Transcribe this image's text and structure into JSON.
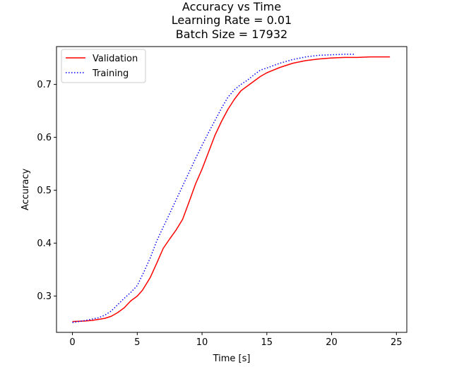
{
  "chart_data": {
    "type": "line",
    "title_lines": [
      "Accuracy vs Time",
      "Learning Rate = 0.01",
      "Batch Size = 17932"
    ],
    "xlabel": "Time [s]",
    "ylabel": "Accuracy",
    "xlim": [
      -1.23,
      25.8
    ],
    "ylim": [
      0.2315,
      0.7715
    ],
    "xticks": [
      0,
      5,
      10,
      15,
      20,
      25
    ],
    "yticks": [
      0.3,
      0.4,
      0.5,
      0.6,
      0.7
    ],
    "xtick_labels": [
      "0",
      "5",
      "10",
      "15",
      "20",
      "25"
    ],
    "ytick_labels": [
      "0.3",
      "0.4",
      "0.5",
      "0.6",
      "0.7"
    ],
    "legend": {
      "placement": "top-left"
    },
    "grid": false,
    "series": [
      {
        "name": "Validation",
        "color": "#ff0000",
        "linestyle": "solid",
        "points": [
          [
            0.0,
            0.252
          ],
          [
            1.0,
            0.253
          ],
          [
            1.5,
            0.254
          ],
          [
            2.5,
            0.258
          ],
          [
            3.0,
            0.262
          ],
          [
            3.5,
            0.269
          ],
          [
            4.0,
            0.278
          ],
          [
            4.5,
            0.291
          ],
          [
            5.0,
            0.3
          ],
          [
            5.4,
            0.311
          ],
          [
            6.0,
            0.335
          ],
          [
            6.5,
            0.362
          ],
          [
            7.0,
            0.39
          ],
          [
            7.5,
            0.408
          ],
          [
            8.0,
            0.425
          ],
          [
            8.5,
            0.445
          ],
          [
            9.0,
            0.478
          ],
          [
            9.5,
            0.512
          ],
          [
            10.0,
            0.54
          ],
          [
            10.5,
            0.572
          ],
          [
            11.0,
            0.604
          ],
          [
            11.5,
            0.63
          ],
          [
            12.0,
            0.653
          ],
          [
            12.5,
            0.672
          ],
          [
            13.0,
            0.688
          ],
          [
            13.5,
            0.697
          ],
          [
            14.0,
            0.706
          ],
          [
            14.5,
            0.715
          ],
          [
            15.0,
            0.722
          ],
          [
            16.0,
            0.732
          ],
          [
            17.0,
            0.74
          ],
          [
            18.0,
            0.745
          ],
          [
            19.0,
            0.748
          ],
          [
            20.0,
            0.75
          ],
          [
            21.0,
            0.751
          ],
          [
            22.0,
            0.751
          ],
          [
            23.0,
            0.752
          ],
          [
            24.5,
            0.752
          ]
        ]
      },
      {
        "name": "Training",
        "color": "#0000ff",
        "linestyle": "dotted",
        "points": [
          [
            0.0,
            0.25
          ],
          [
            1.0,
            0.254
          ],
          [
            2.0,
            0.259
          ],
          [
            2.5,
            0.264
          ],
          [
            3.0,
            0.272
          ],
          [
            3.5,
            0.284
          ],
          [
            4.0,
            0.296
          ],
          [
            4.5,
            0.307
          ],
          [
            5.0,
            0.32
          ],
          [
            5.5,
            0.345
          ],
          [
            6.0,
            0.372
          ],
          [
            6.5,
            0.404
          ],
          [
            7.0,
            0.43
          ],
          [
            7.5,
            0.456
          ],
          [
            8.0,
            0.482
          ],
          [
            8.5,
            0.508
          ],
          [
            9.0,
            0.534
          ],
          [
            9.5,
            0.56
          ],
          [
            10.0,
            0.585
          ],
          [
            10.5,
            0.609
          ],
          [
            11.0,
            0.632
          ],
          [
            11.5,
            0.655
          ],
          [
            12.0,
            0.676
          ],
          [
            12.5,
            0.69
          ],
          [
            13.0,
            0.7
          ],
          [
            13.5,
            0.708
          ],
          [
            14.0,
            0.718
          ],
          [
            14.5,
            0.727
          ],
          [
            15.0,
            0.731
          ],
          [
            16.0,
            0.74
          ],
          [
            17.0,
            0.747
          ],
          [
            18.0,
            0.752
          ],
          [
            19.0,
            0.755
          ],
          [
            20.0,
            0.756
          ],
          [
            21.0,
            0.757
          ],
          [
            21.8,
            0.757
          ]
        ]
      }
    ]
  }
}
